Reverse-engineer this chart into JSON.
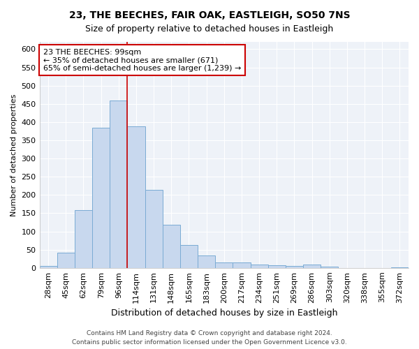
{
  "title": "23, THE BEECHES, FAIR OAK, EASTLEIGH, SO50 7NS",
  "subtitle": "Size of property relative to detached houses in Eastleigh",
  "xlabel": "Distribution of detached houses by size in Eastleigh",
  "ylabel": "Number of detached properties",
  "bar_color": "#c8d8ee",
  "bar_edge_color": "#7aabd4",
  "categories": [
    "28sqm",
    "45sqm",
    "62sqm",
    "79sqm",
    "96sqm",
    "114sqm",
    "131sqm",
    "148sqm",
    "165sqm",
    "183sqm",
    "200sqm",
    "217sqm",
    "234sqm",
    "251sqm",
    "269sqm",
    "286sqm",
    "303sqm",
    "320sqm",
    "338sqm",
    "355sqm",
    "372sqm"
  ],
  "values": [
    5,
    42,
    158,
    385,
    460,
    388,
    215,
    118,
    63,
    35,
    15,
    15,
    10,
    7,
    5,
    10,
    3,
    0,
    0,
    0,
    2
  ],
  "ylim": [
    0,
    620
  ],
  "yticks": [
    0,
    50,
    100,
    150,
    200,
    250,
    300,
    350,
    400,
    450,
    500,
    550,
    600
  ],
  "vline_x_idx": 4.5,
  "annotation_text": "23 THE BEECHES: 99sqm\n← 35% of detached houses are smaller (671)\n65% of semi-detached houses are larger (1,239) →",
  "annotation_box_color": "#ffffff",
  "annotation_box_edge_color": "#cc0000",
  "footer_line1": "Contains HM Land Registry data © Crown copyright and database right 2024.",
  "footer_line2": "Contains public sector information licensed under the Open Government Licence v3.0.",
  "background_color": "#eef2f8",
  "grid_color": "#ffffff",
  "fig_background": "#ffffff",
  "title_fontsize": 10,
  "subtitle_fontsize": 9,
  "xlabel_fontsize": 9,
  "ylabel_fontsize": 8,
  "tick_fontsize": 8,
  "annotation_fontsize": 8,
  "footer_fontsize": 6.5
}
